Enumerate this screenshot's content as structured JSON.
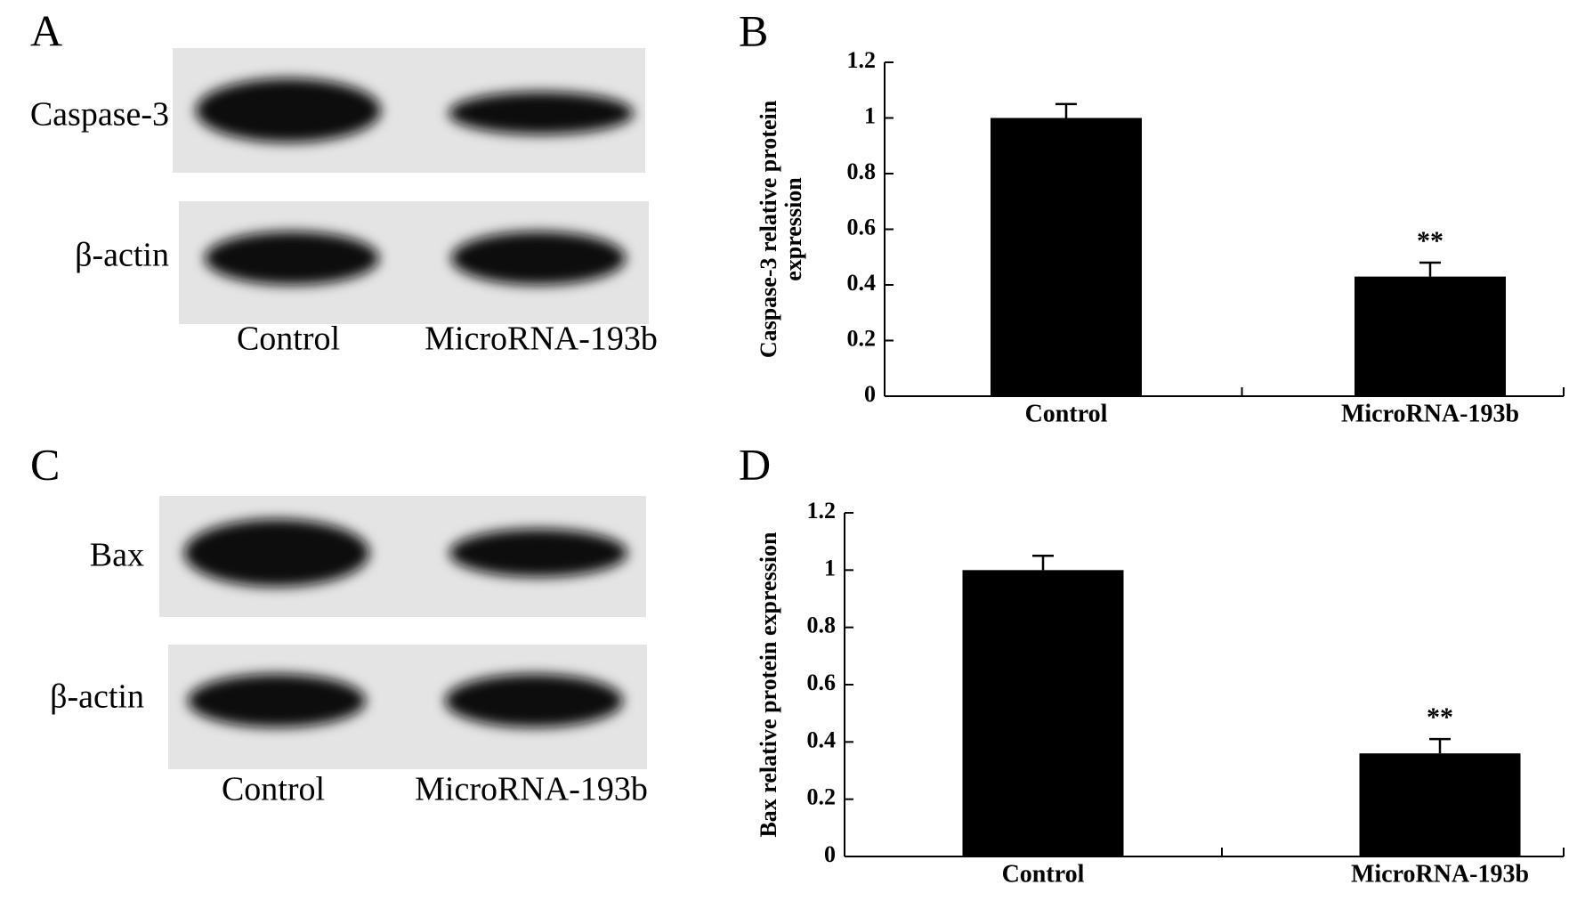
{
  "panel_labels": [
    "A",
    "B",
    "C",
    "D"
  ],
  "blots": [
    {
      "rows": [
        "Caspase-3",
        "β-actin"
      ],
      "lanes": [
        "Control",
        "MicroRNA-193b"
      ]
    },
    {
      "rows": [
        "Bax",
        "β-actin"
      ],
      "lanes": [
        "Control",
        "MicroRNA-193b"
      ]
    }
  ],
  "chart_data": [
    {
      "type": "bar",
      "ylabel": [
        "Caspase-3 relative protein",
        "expression"
      ],
      "categories": [
        "Control",
        "MicroRNA-193b"
      ],
      "values": [
        1.0,
        0.43
      ],
      "errors": [
        0.05,
        0.05
      ],
      "annotations": [
        null,
        "**"
      ],
      "color": "#000000",
      "ylim": [
        0,
        1.2
      ],
      "yticks": [
        0,
        0.2,
        0.4,
        0.6,
        0.8,
        1,
        1.2
      ]
    },
    {
      "type": "bar",
      "ylabel": [
        "Bax relative protein expression"
      ],
      "categories": [
        "Control",
        "MicroRNA-193b"
      ],
      "values": [
        1.0,
        0.36
      ],
      "errors": [
        0.05,
        0.05
      ],
      "annotations": [
        null,
        "**"
      ],
      "color": "#000000",
      "ylim": [
        0,
        1.2
      ],
      "yticks": [
        0,
        0.2,
        0.4,
        0.6,
        0.8,
        1,
        1.2
      ]
    }
  ]
}
